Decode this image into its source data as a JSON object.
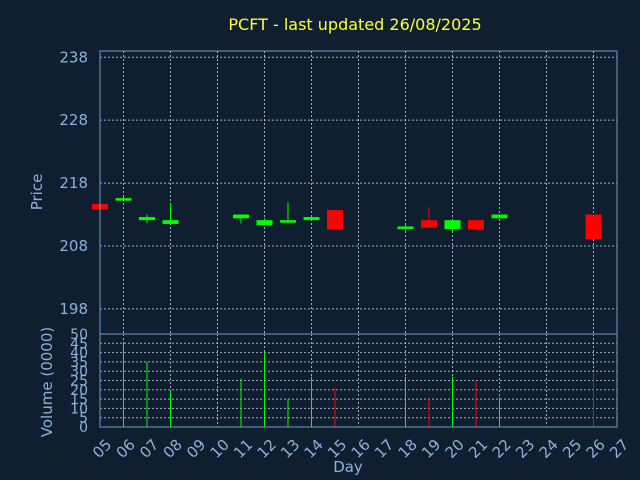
{
  "chart_data": {
    "type": "candlestick",
    "title": "PCFT - last updated 26/08/2025",
    "xlabel": "Day",
    "categories": [
      "05",
      "06",
      "07",
      "08",
      "09",
      "10",
      "11",
      "12",
      "13",
      "14",
      "15",
      "16",
      "17",
      "18",
      "19",
      "20",
      "21",
      "22",
      "23",
      "24",
      "25",
      "26",
      "27"
    ],
    "price": {
      "ylabel": "Price",
      "ylim": [
        194,
        239
      ],
      "yticks": [
        238,
        228,
        218,
        208,
        198
      ],
      "candles": [
        {
          "day": "05",
          "open": 214.7,
          "close": 213.8,
          "high": 214.7,
          "low": 213.8
        },
        {
          "day": "06",
          "open": 215.3,
          "close": 215.6,
          "high": 215.8,
          "low": 215.3
        },
        {
          "day": "07",
          "open": 212.1,
          "close": 212.6,
          "high": 213.0,
          "low": 211.6
        },
        {
          "day": "08",
          "open": 211.5,
          "close": 212.1,
          "high": 214.7,
          "low": 211.3
        },
        {
          "day": "11",
          "open": 212.4,
          "close": 213.0,
          "high": 213.0,
          "low": 211.6
        },
        {
          "day": "12",
          "open": 211.3,
          "close": 212.1,
          "high": 212.4,
          "low": 211.3
        },
        {
          "day": "13",
          "open": 211.8,
          "close": 212.1,
          "high": 214.9,
          "low": 211.6
        },
        {
          "day": "14",
          "open": 212.1,
          "close": 212.6,
          "high": 212.9,
          "low": 212.1
        },
        {
          "day": "15",
          "open": 213.7,
          "close": 210.6,
          "high": 213.7,
          "low": 210.6
        },
        {
          "day": "18",
          "open": 210.9,
          "close": 211.1,
          "high": 211.3,
          "low": 210.5
        },
        {
          "day": "19",
          "open": 212.1,
          "close": 210.9,
          "high": 214.2,
          "low": 210.9
        },
        {
          "day": "20",
          "open": 210.7,
          "close": 212.1,
          "high": 212.1,
          "low": 210.3
        },
        {
          "day": "21",
          "open": 212.1,
          "close": 210.6,
          "high": 212.1,
          "low": 210.6
        },
        {
          "day": "22",
          "open": 212.4,
          "close": 213.0,
          "high": 213.0,
          "low": 212.4
        },
        {
          "day": "26",
          "open": 213.0,
          "close": 209.1,
          "high": 213.0,
          "low": 209.1
        }
      ]
    },
    "volume": {
      "ylabel": "Volume (0000)",
      "ylim": [
        0,
        50
      ],
      "yticks": [
        0,
        5,
        10,
        15,
        20,
        25,
        30,
        35,
        40,
        45,
        50
      ],
      "bars": [
        {
          "day": "06",
          "value": 46,
          "direction": "up"
        },
        {
          "day": "07",
          "value": 35,
          "direction": "up"
        },
        {
          "day": "08",
          "value": 19,
          "direction": "up"
        },
        {
          "day": "11",
          "value": 26,
          "direction": "up"
        },
        {
          "day": "12",
          "value": 40,
          "direction": "up"
        },
        {
          "day": "13",
          "value": 15,
          "direction": "up"
        },
        {
          "day": "14",
          "value": 27,
          "direction": "up"
        },
        {
          "day": "15",
          "value": 21,
          "direction": "down"
        },
        {
          "day": "18",
          "value": 27,
          "direction": "up"
        },
        {
          "day": "19",
          "value": 16,
          "direction": "down"
        },
        {
          "day": "20",
          "value": 27,
          "direction": "up"
        },
        {
          "day": "21",
          "value": 25,
          "direction": "down"
        },
        {
          "day": "22",
          "value": 16,
          "direction": "up"
        },
        {
          "day": "26",
          "value": 29,
          "direction": "down"
        }
      ]
    },
    "grid": true,
    "colors": {
      "background": "#0f1f30",
      "frame": "#6f98c8",
      "grid": "#b7c7d9",
      "title": "#ffff33",
      "text": "#8fb1d9",
      "up": "#00ff00",
      "down": "#ff0000"
    }
  }
}
